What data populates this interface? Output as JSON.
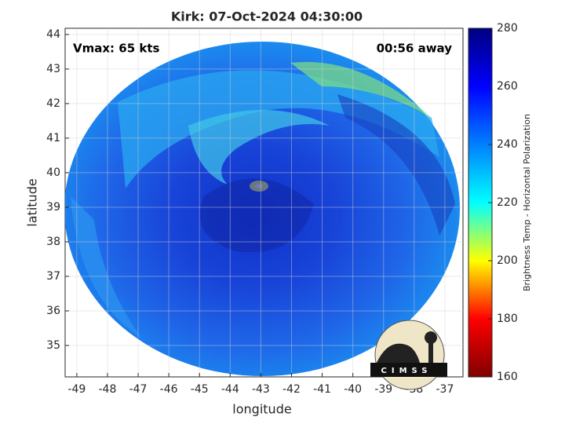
{
  "chart_data": {
    "type": "image-map",
    "title": "Kirk: 07-Oct-2024 04:30:00",
    "annotations": [
      "Vmax: 65 kts",
      "00:56 away"
    ],
    "xlabel": "longitude",
    "ylabel": "latitude",
    "xlim": [
      -49.38,
      -36.41
    ],
    "xticks": [
      -49,
      -48,
      -47,
      -46,
      -45,
      -44,
      -43,
      -42,
      -41,
      -40,
      -39,
      -38,
      -37
    ],
    "ylim": [
      34.09,
      44.18
    ],
    "yticks": [
      35,
      36,
      37,
      38,
      39,
      40,
      41,
      42,
      43,
      44
    ],
    "grid": true,
    "colorbar": {
      "label": "Brightness Temp - Horizontal Polarization",
      "lim": [
        160,
        280
      ],
      "ticks": [
        160,
        180,
        200,
        220,
        240,
        260,
        280
      ],
      "colors": [
        "#800000",
        "#ff0000",
        "#ffff00",
        "#00ffff",
        "#0080ff",
        "#0000ff",
        "#000080"
      ]
    },
    "logo": "CIMSS"
  }
}
